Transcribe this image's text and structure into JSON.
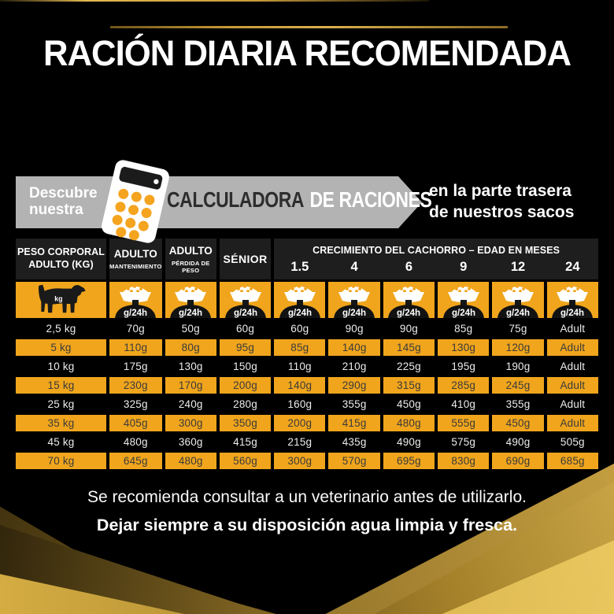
{
  "title": "RACIÓN DIARIA RECOMENDADA",
  "promo": {
    "discover": "Descubre nuestra",
    "calculator_word_dark": "CALCULADORA",
    "calculator_word_light": "DE RACIONES",
    "right_line1": "en la parte trasera",
    "right_line2": "de nuestros sacos"
  },
  "icons": {
    "calculator": "calculator-icon",
    "dog": "dog-icon",
    "food_bowl": "food-bowl-icon"
  },
  "colors": {
    "accent_gold": "#f0a51c",
    "banner_gray": "#b3b3b3",
    "header_cell_bg": "#1e1e1e",
    "line_gold": "#c79a3a",
    "calc_button_orange": "#f5a41f"
  },
  "table": {
    "header": {
      "weight_line1": "PESO CORPORAL",
      "weight_line2": "ADULTO (KG)",
      "adult_maint_top": "ADULTO",
      "adult_maint_sub": "MANTENIMIENTO",
      "adult_loss_top": "ADULTO",
      "adult_loss_sub": "PÉRDIDA DE PESO",
      "senior": "SÉNIOR",
      "growth_title": "CRECIMIENTO DEL CACHORRO – EDAD EN MESES",
      "growth_months": [
        "1.5",
        "4",
        "6",
        "9",
        "12",
        "24"
      ]
    },
    "icon_row": {
      "dog_label": "kg",
      "bowl_label": "g/24h"
    },
    "rows": [
      {
        "weight": "2,5 kg",
        "values": [
          "70g",
          "50g",
          "60g",
          "60g",
          "90g",
          "90g",
          "85g",
          "75g",
          "Adult"
        ]
      },
      {
        "weight": "5 kg",
        "values": [
          "110g",
          "80g",
          "95g",
          "85g",
          "140g",
          "145g",
          "130g",
          "120g",
          "Adult"
        ]
      },
      {
        "weight": "10 kg",
        "values": [
          "175g",
          "130g",
          "150g",
          "110g",
          "210g",
          "225g",
          "195g",
          "190g",
          "Adult"
        ]
      },
      {
        "weight": "15 kg",
        "values": [
          "230g",
          "170g",
          "200g",
          "140g",
          "290g",
          "315g",
          "285g",
          "245g",
          "Adult"
        ]
      },
      {
        "weight": "25 kg",
        "values": [
          "325g",
          "240g",
          "280g",
          "160g",
          "355g",
          "450g",
          "410g",
          "355g",
          "Adult"
        ]
      },
      {
        "weight": "35 kg",
        "values": [
          "405g",
          "300g",
          "350g",
          "200g",
          "415g",
          "480g",
          "555g",
          "450g",
          "Adult"
        ]
      },
      {
        "weight": "45 kg",
        "values": [
          "480g",
          "360g",
          "415g",
          "215g",
          "435g",
          "490g",
          "575g",
          "490g",
          "505g"
        ]
      },
      {
        "weight": "70 kg",
        "values": [
          "645g",
          "480g",
          "560g",
          "300g",
          "570g",
          "695g",
          "830g",
          "690g",
          "685g"
        ]
      }
    ]
  },
  "footer": {
    "line1": "Se recomienda consultar a un veterinario antes de utilizarlo.",
    "line2": "Dejar siempre a su disposición agua limpia y fresca."
  }
}
